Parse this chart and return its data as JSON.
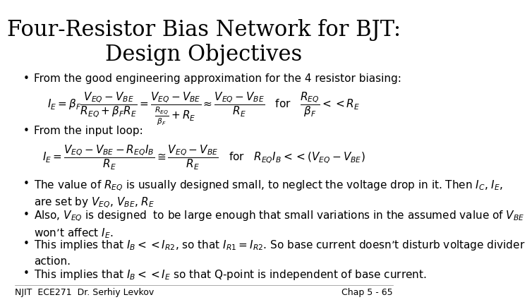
{
  "title_line1": "Four-Resistor Bias Network for BJT:",
  "title_line2": "Design Objectives",
  "title_fontsize": 22,
  "bullet_fontsize": 11,
  "footer_left": "NJIT  ECE271  Dr. Serhiy Levkov",
  "footer_right": "Chap 5 - 65",
  "footer_fontsize": 9,
  "bg_color": "#ffffff",
  "text_color": "#000000",
  "bullet1": "From the good engineering approximation for the 4 resistor biasing:",
  "eq1": "$I_E = \\beta_F \\dfrac{V_{EQ}-V_{BE}}{R_{EQ}+\\beta_F R_E} = \\dfrac{V_{EQ}-V_{BE}}{\\frac{R_{EQ}}{\\beta_F}+R_E} \\approx \\dfrac{V_{EQ}-V_{BE}}{R_E}$   for   $\\dfrac{R_{EQ}}{\\beta_F} << R_E$",
  "bullet2": "From the input loop:",
  "eq2": "$I_E = \\dfrac{V_{EQ}-V_{BE}-R_{EQ}I_B}{R_E} \\cong \\dfrac{V_{EQ}-V_{BE}}{R_E}$   for   $R_{EQ}I_B << (V_{EQ}-V_{BE})$",
  "bullet3a": "The value of $R_{EQ}$ is usually designed small, to neglect the voltage drop in it. Then $I_C$, $I_E$,",
  "bullet3b": "are set by $V_{EQ}$, $V_{BE}$, $R_E$",
  "bullet4a": "Also, $V_{EQ}$ is designed  to be large enough that small variations in the assumed value of $V_{BE}$",
  "bullet4b": "won’t affect $I_E$.",
  "bullet5a": "This implies that $I_B << I_{R2}$, so that $I_{R1} = I_{R2}$. So base current doesn’t disturb voltage divider",
  "bullet5b": "action.",
  "bullet6": "This implies that $I_B << I_E$ so that Q-point is independent of base current."
}
